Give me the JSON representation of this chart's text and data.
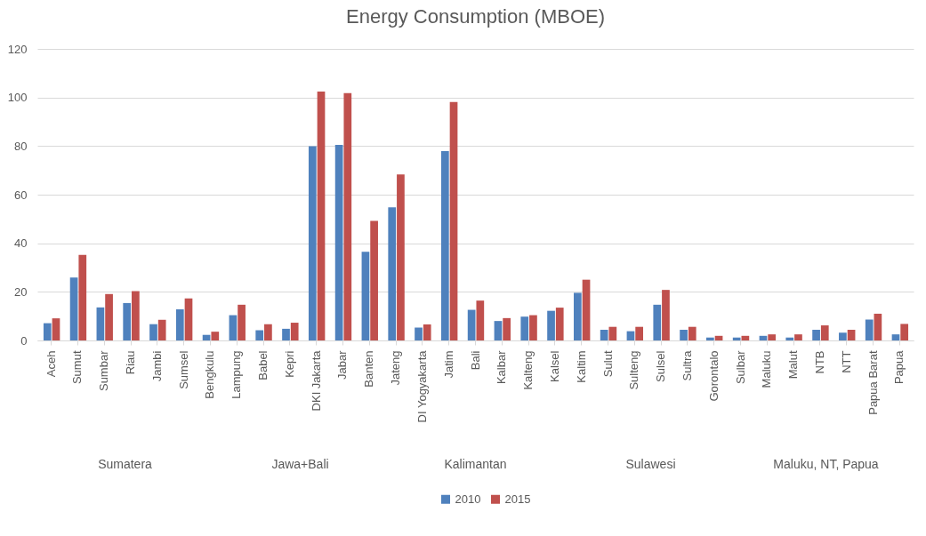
{
  "chart_data": {
    "type": "bar",
    "title": "Energy Consumption (MBOE)",
    "categories": [
      "Aceh",
      "Sumut",
      "Sumbar",
      "Riau",
      "Jambi",
      "Sumsel",
      "Bengkulu",
      "Lampung",
      "Babel",
      "Kepri",
      "DKI Jakarta",
      "Jabar",
      "Banten",
      "Jateng",
      "DI Yogyakarta",
      "Jatim",
      "Bali",
      "Kalbar",
      "Kalteng",
      "Kalsel",
      "Kaltim",
      "Sulut",
      "Sulteng",
      "Sulsel",
      "Sultra",
      "Gorontalo",
      "Sulbar",
      "Maluku",
      "Malut",
      "NTB",
      "NTT",
      "Papua Barat",
      "Papua"
    ],
    "series": [
      {
        "name": "2010",
        "color": "#4f81bd",
        "values": [
          7.1,
          25.9,
          13.6,
          15.4,
          6.7,
          12.8,
          2.3,
          10.4,
          4.2,
          4.8,
          79.9,
          80.5,
          36.5,
          54.8,
          5.3,
          77.9,
          12.6,
          8.0,
          9.8,
          12.2,
          19.6,
          4.4,
          3.8,
          14.7,
          4.4,
          1.2,
          1.2,
          1.9,
          1.2,
          4.4,
          3.2,
          8.6,
          2.5
        ]
      },
      {
        "name": "2015",
        "color": "#c0504d",
        "values": [
          9.1,
          35.2,
          19.1,
          20.3,
          8.5,
          17.3,
          3.6,
          14.7,
          6.7,
          7.3,
          102.4,
          101.8,
          49.2,
          68.3,
          6.6,
          98.1,
          16.4,
          9.2,
          10.4,
          13.5,
          25.0,
          5.6,
          5.6,
          20.8,
          5.6,
          1.9,
          1.9,
          2.5,
          2.5,
          6.2,
          4.4,
          11.0,
          6.8
        ]
      }
    ],
    "ylim": [
      0,
      120
    ],
    "yticks": [
      0,
      20,
      40,
      60,
      80,
      100,
      120
    ],
    "grid": "y",
    "legend": "bottom",
    "annotations": [
      "Sumatera",
      "Jawa+Bali",
      "Kalimantan",
      "Sulawesi",
      "Maluku, NT, Papua"
    ]
  }
}
